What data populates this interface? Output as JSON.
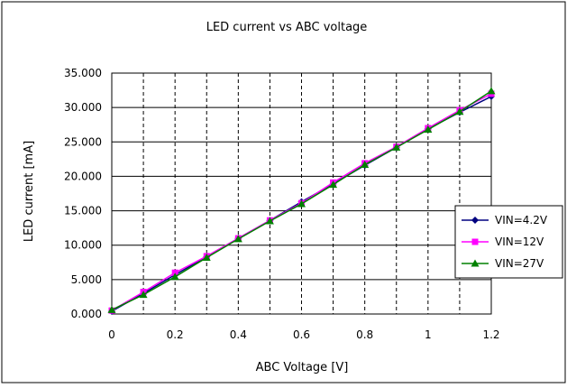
{
  "chart_data": {
    "type": "line",
    "title": "LED current vs ABC voltage",
    "xlabel": "ABC Voltage [V]",
    "ylabel": "LED current [mA]",
    "xlim": [
      0,
      1.2
    ],
    "ylim": [
      0,
      35
    ],
    "x_ticks": [
      0,
      0.2,
      0.4,
      0.6,
      0.8,
      1,
      1.2
    ],
    "x_tick_labels": [
      "0",
      "0.2",
      "0.4",
      "0.6",
      "0.8",
      "1",
      "1.2"
    ],
    "y_ticks": [
      0,
      5,
      10,
      15,
      20,
      25,
      30,
      35
    ],
    "y_tick_labels": [
      "0.000",
      "5.000",
      "10.000",
      "15.000",
      "20.000",
      "25.000",
      "30.000",
      "35.000"
    ],
    "grid": {
      "x_minor_dashed": true,
      "x_step": 0.1,
      "y_major_solid": true
    },
    "legend_position": "right",
    "x": [
      0,
      0.1,
      0.2,
      0.3,
      0.4,
      0.5,
      0.6,
      0.7,
      0.8,
      0.9,
      1.0,
      1.1,
      1.2
    ],
    "series": [
      {
        "name": "VIN=4.2V",
        "color": "#000080",
        "marker": "diamond",
        "values": [
          0.4,
          3.0,
          5.7,
          8.3,
          11.0,
          13.6,
          16.3,
          18.9,
          21.6,
          24.2,
          26.9,
          29.3,
          31.6
        ]
      },
      {
        "name": "VIN=12V",
        "color": "#ff00ff",
        "marker": "square",
        "values": [
          0.5,
          3.2,
          6.0,
          8.4,
          11.0,
          13.6,
          16.1,
          19.1,
          21.9,
          24.3,
          27.0,
          29.6,
          32.0
        ]
      },
      {
        "name": "VIN=27V",
        "color": "#008000",
        "marker": "triangle",
        "values": [
          0.6,
          2.8,
          5.4,
          8.2,
          10.9,
          13.5,
          16.0,
          18.8,
          21.7,
          24.2,
          26.8,
          29.4,
          32.4
        ]
      }
    ]
  }
}
